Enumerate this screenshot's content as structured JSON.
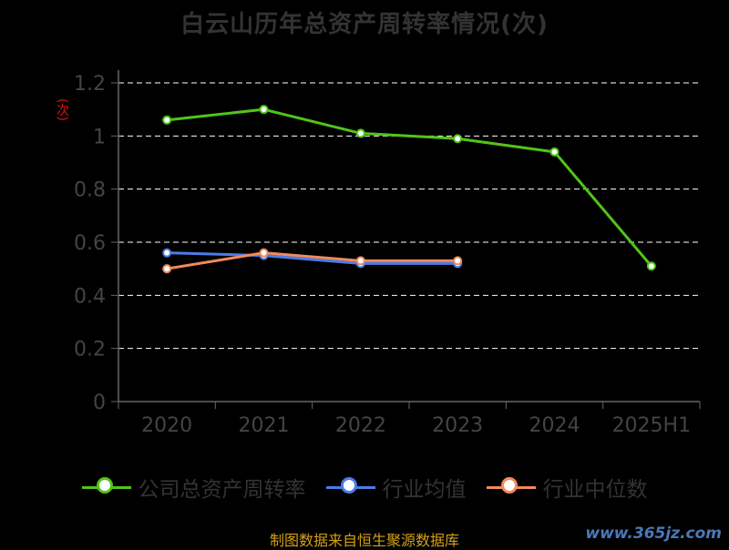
{
  "title": "白云山历年总资产周转率情况(次)",
  "y_axis_label": "(次)",
  "source": "制图数据来自恒生聚源数据库",
  "watermark": "www.365jz.com",
  "colors": {
    "background": "#000000",
    "axis": "#666666",
    "grid": "#ffffff",
    "tick_text": "#444444",
    "company": "#52c41a",
    "industry_avg": "#4a7de8",
    "industry_median": "#f28b5a"
  },
  "chart_data": {
    "type": "line",
    "title": "白云山历年总资产周转率情况(次)",
    "ylabel": "(次)",
    "ylim": [
      0,
      1.2
    ],
    "yticks": [
      0,
      0.2,
      0.4,
      0.6,
      0.8,
      1,
      1.2
    ],
    "ytick_labels": [
      "0",
      "0.2",
      "0.4",
      "0.6",
      "0.8",
      "1",
      "1.2"
    ],
    "categories": [
      "2020",
      "2021",
      "2022",
      "2023",
      "2024",
      "2025H1"
    ],
    "grid": true,
    "legend_position": "bottom",
    "series": [
      {
        "name": "公司总资产周转率",
        "color": "#52c41a",
        "values": [
          1.06,
          1.1,
          1.01,
          0.99,
          0.94,
          0.51
        ]
      },
      {
        "name": "行业均值",
        "color": "#4a7de8",
        "values": [
          0.56,
          0.55,
          0.52,
          0.52,
          null,
          null
        ]
      },
      {
        "name": "行业中位数",
        "color": "#f28b5a",
        "values": [
          0.5,
          0.56,
          0.53,
          0.53,
          null,
          null
        ]
      }
    ]
  }
}
